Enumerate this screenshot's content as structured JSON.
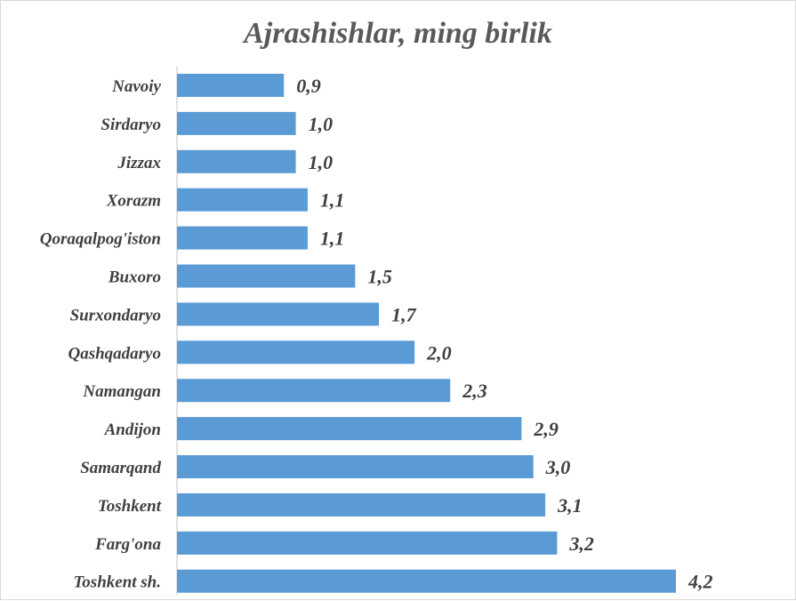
{
  "chart_data": {
    "type": "bar",
    "orientation": "horizontal",
    "title": "Ajrashishlar, ming birlik",
    "categories": [
      "Navoiy",
      "Sirdaryo",
      "Jizzax",
      "Xorazm",
      "Qoraqalpog'iston",
      "Buxoro",
      "Surxondaryo",
      "Qashqadaryo",
      "Namangan",
      "Andijon",
      "Samarqand",
      "Toshkent",
      "Farg'ona",
      "Toshkent sh."
    ],
    "values": [
      0.9,
      1.0,
      1.0,
      1.1,
      1.1,
      1.5,
      1.7,
      2.0,
      2.3,
      2.9,
      3.0,
      3.1,
      3.2,
      4.2
    ],
    "value_labels": [
      "0,9",
      "1,0",
      "1,0",
      "1,1",
      "1,1",
      "1,5",
      "1,7",
      "2,0",
      "2,3",
      "2,9",
      "3,0",
      "3,1",
      "3,2",
      "4,2"
    ],
    "bar_color": "#5b9bd5",
    "axis_line_color": "#d9d9d9",
    "xlim": [
      0,
      4.2
    ],
    "grid": false,
    "legend": "none"
  }
}
